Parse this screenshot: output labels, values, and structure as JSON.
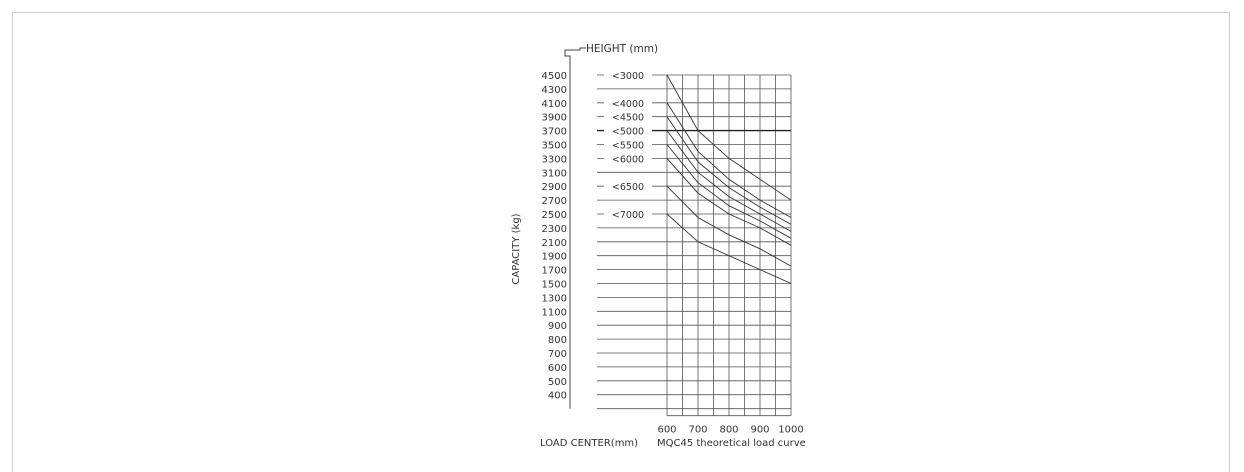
{
  "chart_data": {
    "type": "line",
    "title": "MQC45 theoretical load curve",
    "xlabel": "LOAD CENTER(mm)",
    "ylabel": "CAPACITY (kg)",
    "legend_title": "HEIGHT (mm)",
    "x_ticks": [
      "600",
      "700",
      "800",
      "900",
      "1000"
    ],
    "y_ticks": [
      "4500",
      "4300",
      "4100",
      "3900",
      "3700",
      "3500",
      "3300",
      "3100",
      "2900",
      "2700",
      "2500",
      "2300",
      "2100",
      "1900",
      "1700",
      "1500",
      "1300",
      "1100",
      "900",
      "800",
      "700",
      "600",
      "500",
      "400"
    ],
    "xlim": [
      600,
      1000
    ],
    "grid": true,
    "series": [
      {
        "name": "<3000",
        "x": [
          600,
          700,
          800,
          900,
          1000
        ],
        "y": [
          4500,
          3700,
          3300,
          3000,
          2700
        ]
      },
      {
        "name": "<4000",
        "x": [
          600,
          700,
          800,
          900,
          1000
        ],
        "y": [
          4100,
          3400,
          3000,
          2700,
          2450
        ]
      },
      {
        "name": "<4500",
        "x": [
          600,
          700,
          800,
          900,
          1000
        ],
        "y": [
          3900,
          3250,
          2880,
          2600,
          2350
        ]
      },
      {
        "name": "<5000",
        "x": [
          600,
          700,
          800,
          900,
          1000
        ],
        "y": [
          3700,
          3100,
          2750,
          2500,
          2250
        ]
      },
      {
        "name": "<5500",
        "x": [
          600,
          700,
          800,
          900,
          1000
        ],
        "y": [
          3500,
          2950,
          2620,
          2400,
          2150
        ]
      },
      {
        "name": "<6000",
        "x": [
          600,
          700,
          800,
          900,
          1000
        ],
        "y": [
          3300,
          2800,
          2500,
          2300,
          2050
        ]
      },
      {
        "name": "<6500",
        "x": [
          600,
          700,
          800,
          900,
          1000
        ],
        "y": [
          2900,
          2450,
          2200,
          2000,
          1750
        ]
      },
      {
        "name": "<7000",
        "x": [
          600,
          700,
          800,
          900,
          1000
        ],
        "y": [
          2500,
          2100,
          1900,
          1700,
          1500
        ]
      }
    ],
    "highlight_line": 3700
  }
}
